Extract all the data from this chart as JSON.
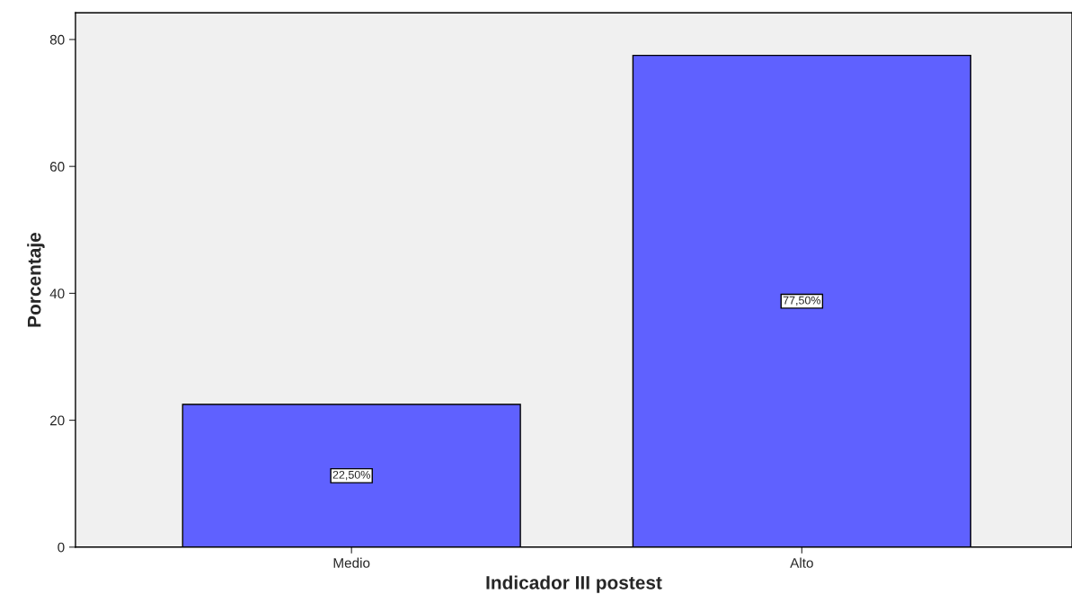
{
  "chart_data": {
    "type": "bar",
    "xlabel": "Indicador III postest",
    "ylabel": "Porcentaje",
    "categories": [
      "Medio",
      "Alto"
    ],
    "values": [
      22.5,
      77.5
    ],
    "value_labels": [
      "22,50%",
      "77,50%"
    ],
    "color": "#5f61ff",
    "ylim": [
      0,
      84.2
    ],
    "yticks": [
      0,
      20,
      40,
      60,
      80
    ],
    "grid": false,
    "legend": false
  }
}
